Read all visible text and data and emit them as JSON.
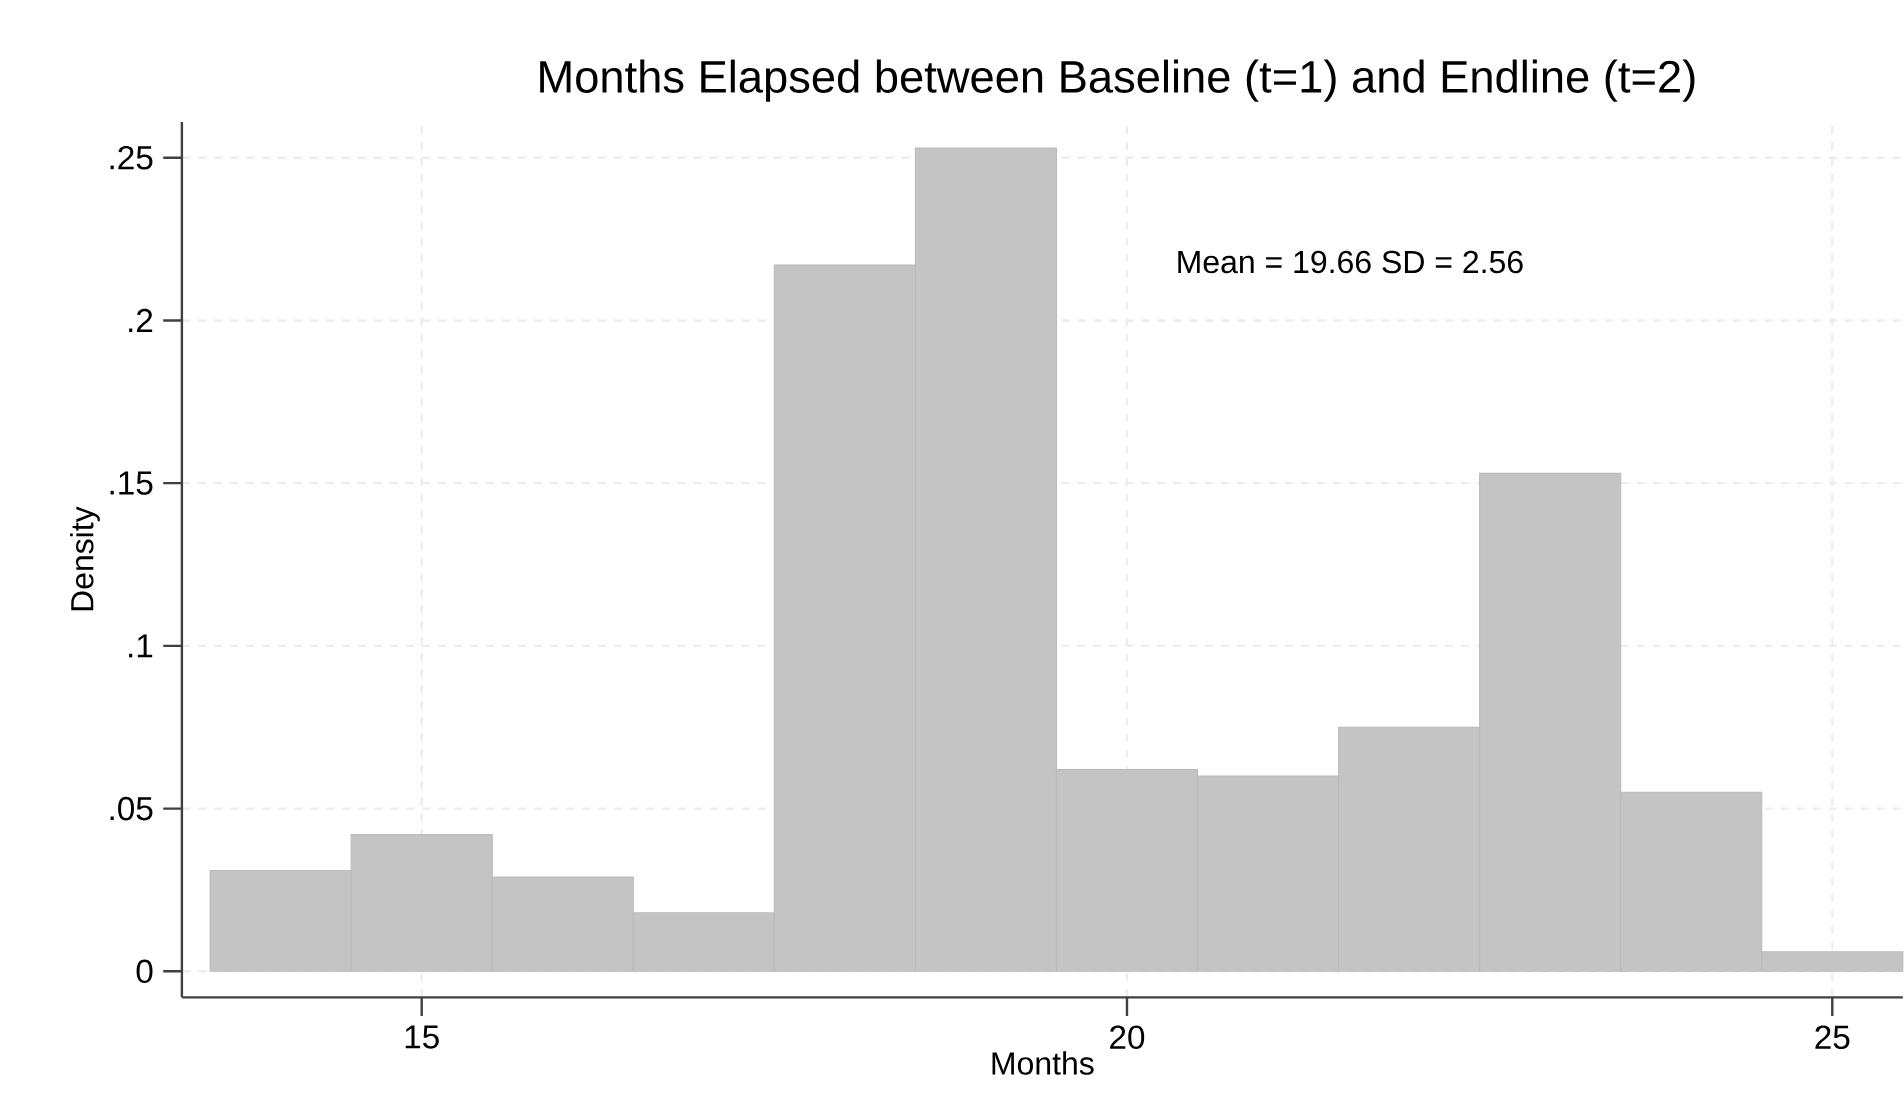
{
  "chart_data": {
    "type": "histogram",
    "title": "Months Elapsed between Baseline (t=1) and Endline (t=2)",
    "xlabel": "Months",
    "ylabel": "Density",
    "bins": [
      13.5,
      14.5,
      15.5,
      16.5,
      17.5,
      18.5,
      19.5,
      20.5,
      21.5,
      22.5,
      23.5,
      24.5,
      25.5
    ],
    "values": [
      0.031,
      0.042,
      0.029,
      0.018,
      0.217,
      0.253,
      0.062,
      0.06,
      0.075,
      0.153,
      0.055,
      0.006
    ],
    "color": "#c4c4c4",
    "xlim": [
      13.3,
      25.5
    ],
    "ylim": [
      -0.008,
      0.261
    ],
    "xticks": [
      15,
      20,
      25
    ],
    "yticks": [
      {
        "value": 0,
        "label": "0"
      },
      {
        "value": 0.05,
        "label": ".05"
      },
      {
        "value": 0.1,
        "label": ".1"
      },
      {
        "value": 0.15,
        "label": ".15"
      },
      {
        "value": 0.2,
        "label": ".2"
      },
      {
        "value": 0.25,
        "label": ".25"
      }
    ],
    "grid": true,
    "annotations": [
      "Mean = 19.66   SD = 2.56"
    ]
  }
}
